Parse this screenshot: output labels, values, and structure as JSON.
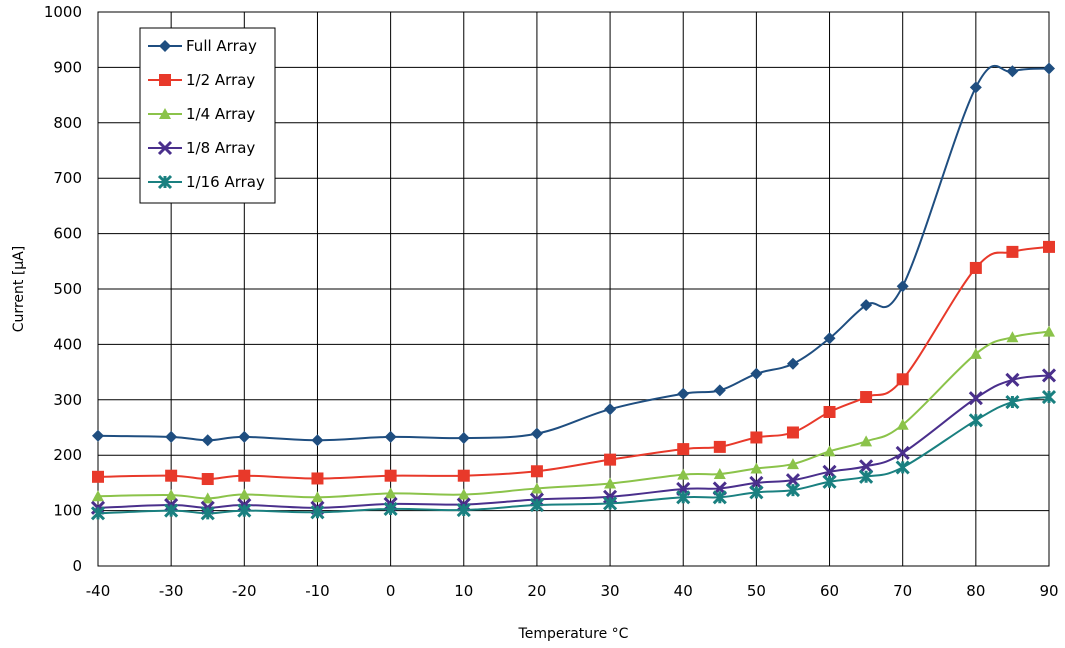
{
  "chart_data": {
    "type": "line",
    "xlabel": "Temperature °C",
    "ylabel": "Current [µA]",
    "xlim": [
      -40,
      90
    ],
    "ylim": [
      0,
      1000
    ],
    "x_ticks": [
      -40,
      -30,
      -20,
      -10,
      0,
      10,
      20,
      30,
      40,
      50,
      60,
      70,
      80,
      90
    ],
    "y_ticks": [
      0,
      100,
      200,
      300,
      400,
      500,
      600,
      700,
      800,
      900,
      1000
    ],
    "grid": true,
    "legend_position": "top-left",
    "x": [
      -40,
      -30,
      -25,
      -20,
      -10,
      0,
      10,
      20,
      30,
      40,
      45,
      50,
      55,
      60,
      65,
      70,
      80,
      85,
      90
    ],
    "series": [
      {
        "name": "Full Array",
        "color": "#1f4e80",
        "marker": "diamond",
        "values": [
          235,
          233,
          227,
          233,
          227,
          233,
          231,
          239,
          283,
          311,
          317,
          347,
          365,
          411,
          471,
          505,
          864,
          893,
          898
        ]
      },
      {
        "name": "1/2 Array",
        "color": "#e8392a",
        "marker": "square",
        "values": [
          161,
          163,
          157,
          163,
          158,
          163,
          163,
          171,
          192,
          211,
          215,
          232,
          241,
          278,
          305,
          337,
          538,
          567,
          576
        ]
      },
      {
        "name": "1/4 Array",
        "color": "#8bc34a",
        "marker": "triangle",
        "values": [
          126,
          128,
          122,
          129,
          124,
          131,
          129,
          140,
          149,
          165,
          166,
          176,
          184,
          207,
          225,
          255,
          383,
          413,
          423
        ]
      },
      {
        "name": "1/8 Array",
        "color": "#4a2f8c",
        "marker": "x",
        "values": [
          105,
          110,
          105,
          110,
          105,
          112,
          111,
          120,
          125,
          139,
          140,
          150,
          155,
          170,
          180,
          204,
          303,
          336,
          344
        ]
      },
      {
        "name": "1/16 Array",
        "color": "#1a8080",
        "marker": "star",
        "values": [
          95,
          100,
          95,
          100,
          97,
          103,
          101,
          110,
          113,
          124,
          124,
          133,
          137,
          152,
          161,
          178,
          263,
          296,
          305
        ]
      }
    ]
  }
}
